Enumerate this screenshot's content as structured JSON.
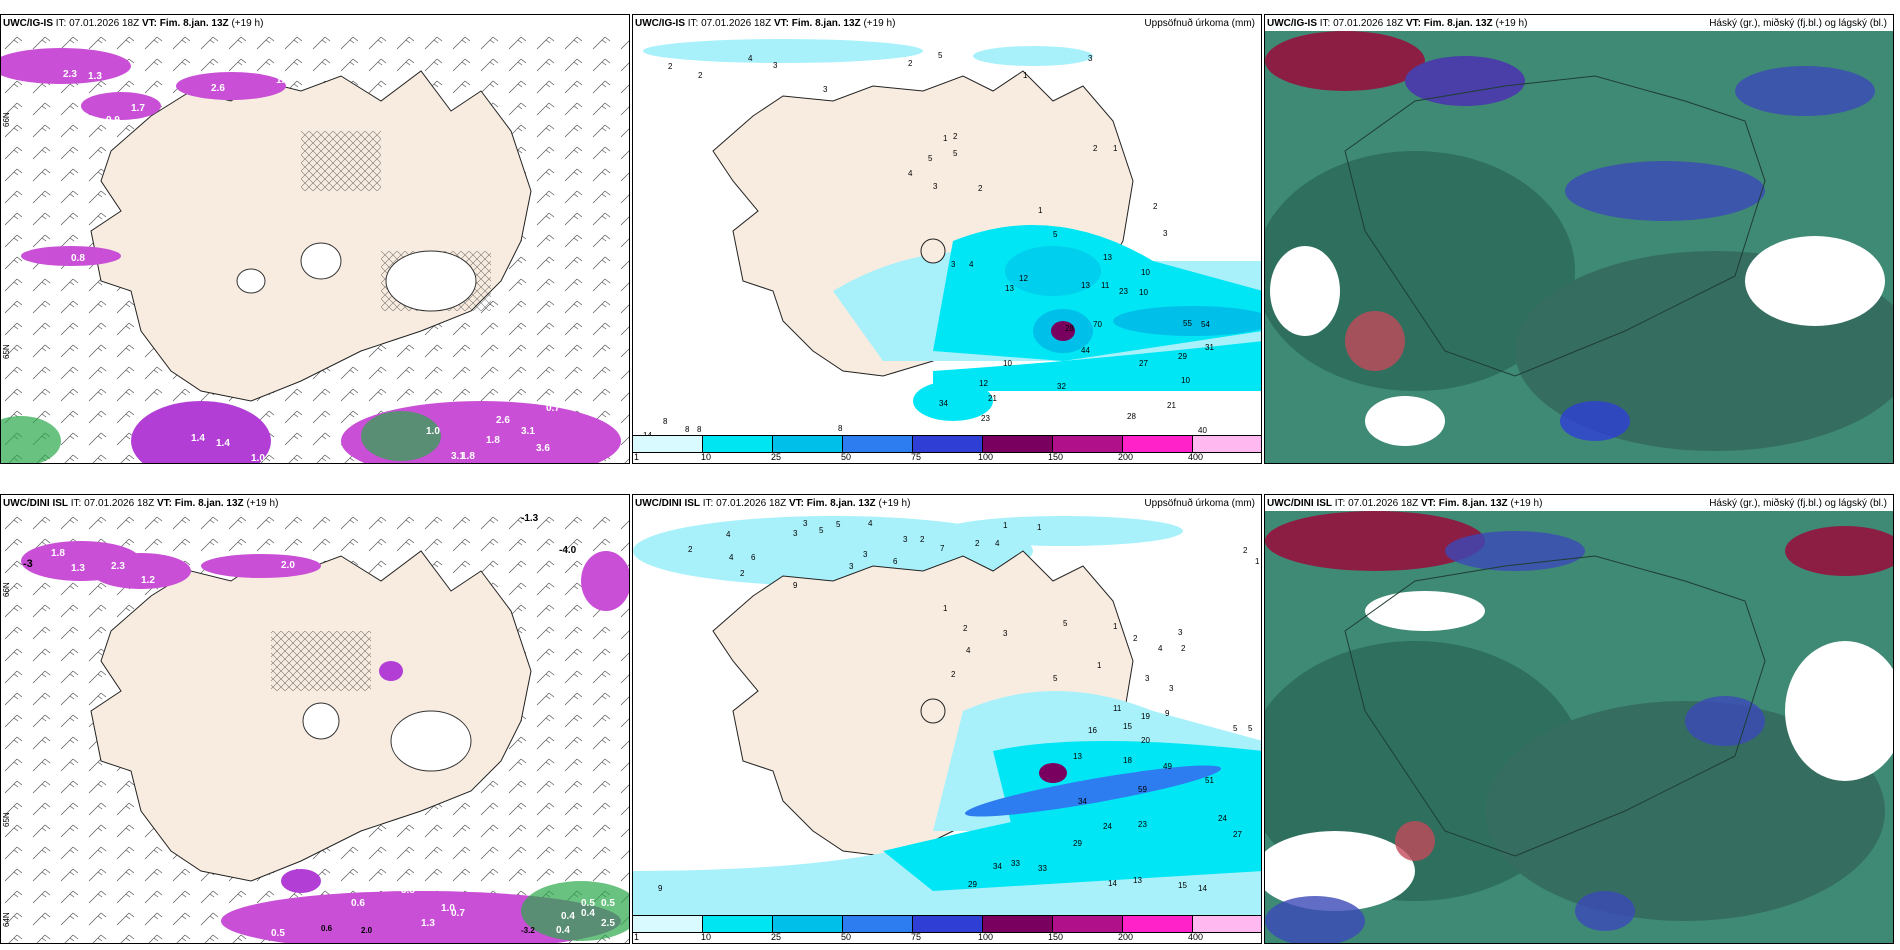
{
  "panels": {
    "p1": {
      "model": "UWC/IG-IS",
      "run_label": "IT: 07.01.2026 18Z",
      "vt_label": "VT: Fim. 8.jan. 13Z",
      "lead": "(+19 h)",
      "right_label": ""
    },
    "p2": {
      "model": "UWC/IG-IS",
      "run_label": "IT: 07.01.2026 18Z",
      "vt_label": "VT: Fim. 8.jan. 13Z",
      "lead": "(+19 h)",
      "right_label": "Uppsöfnuð úrkoma (mm)"
    },
    "p3": {
      "model": "UWC/IG-IS",
      "run_label": "IT: 07.01.2026 18Z",
      "vt_label": "VT: Fim. 8.jan. 13Z",
      "lead": "(+19 h)",
      "right_label": "Háský (gr.), miðský (fj.bl.) og lágský (bl.)"
    },
    "p4": {
      "model": "UWC/DINI ISL",
      "run_label": "IT: 07.01.2026 18Z",
      "vt_label": "VT: Fim. 8.jan. 13Z",
      "lead": "(+19 h)",
      "right_label": ""
    },
    "p5": {
      "model": "UWC/DINI ISL",
      "run_label": "IT: 07.01.2026 18Z",
      "vt_label": "VT: Fim. 8.jan. 13Z",
      "lead": "(+19 h)",
      "right_label": "Uppsöfnuð úrkoma (mm)"
    },
    "p6": {
      "model": "UWC/DINI ISL",
      "run_label": "IT: 07.01.2026 18Z",
      "vt_label": "VT: Fim. 8.jan. 13Z",
      "lead": "(+19 h)",
      "right_label": "Háský (gr.), miðský (fj.bl.) og lágský (bl.)"
    }
  },
  "legend": {
    "ticks": [
      "1",
      "10",
      "25",
      "50",
      "75",
      "100",
      "150",
      "200",
      "400"
    ],
    "colors": [
      "#d9fbff",
      "#00e5f2",
      "#00c0ea",
      "#2e7df0",
      "#2f3fd6",
      "#7a0060",
      "#b0108a",
      "#ff22c8",
      "#ffb8f0"
    ]
  },
  "colors": {
    "land": "#f8ece0",
    "coast": "#222222",
    "precip_light": "#a8f1fb",
    "precip_mid": "#00e6f5",
    "cloud_low": "#2e7e6a",
    "cloud_mid": "#3b49b8",
    "cloud_high": "#8c1e44"
  },
  "lat_labels": {
    "n66": "66N",
    "n65": "65N",
    "n64": "64N"
  },
  "p1_values": [
    "2.3",
    "1.3",
    "2.6",
    "1.3",
    "1.7",
    "0.9",
    "0.8",
    "1.4",
    "1.4",
    "2.6",
    "3.1",
    "1.0",
    "1.8",
    "0.7",
    "1.8",
    "3.1",
    "3.6",
    "1.0"
  ],
  "p2_values": [
    "2",
    "2",
    "4",
    "3",
    "5",
    "2",
    "1",
    "3",
    "3",
    "1",
    "5",
    "2",
    "2",
    "1",
    "5",
    "4",
    "3",
    "2",
    "2",
    "3",
    "1",
    "5",
    "13",
    "3",
    "4",
    "12",
    "13",
    "13",
    "11",
    "23",
    "10",
    "10",
    "28",
    "70",
    "44",
    "55",
    "54",
    "31",
    "29",
    "27",
    "10",
    "10",
    "12",
    "32",
    "21",
    "28",
    "21",
    "40",
    "8",
    "14",
    "8",
    "8",
    "13",
    "22",
    "8",
    "23",
    "34"
  ],
  "p4_values": [
    "3.0",
    "1.8",
    "1.3",
    "2.3",
    "1.2",
    "2.0",
    "-3",
    "-1.3",
    "-4.0",
    "0.4",
    "0.6",
    "0.5",
    "0.4",
    "0.6",
    "2.0",
    "1.3",
    "0.5",
    "0.7",
    "0.5",
    "0.4",
    "-3.2",
    "3.8",
    "1.0",
    "2.5"
  ],
  "p5_values": [
    "3",
    "5",
    "5",
    "4",
    "1",
    "2",
    "4",
    "3",
    "3",
    "2",
    "6",
    "2",
    "4",
    "3",
    "7",
    "6",
    "2",
    "4",
    "9",
    "3",
    "1",
    "2",
    "1",
    "1",
    "2",
    "3",
    "4",
    "2",
    "5",
    "1",
    "2",
    "4",
    "3",
    "2",
    "1",
    "5",
    "3",
    "3",
    "11",
    "19",
    "9",
    "5",
    "5",
    "15",
    "16",
    "20",
    "13",
    "18",
    "49",
    "51",
    "59",
    "24",
    "23",
    "27",
    "29",
    "24",
    "34",
    "33",
    "33",
    "34",
    "14",
    "13",
    "15",
    "14",
    "29",
    "9"
  ]
}
